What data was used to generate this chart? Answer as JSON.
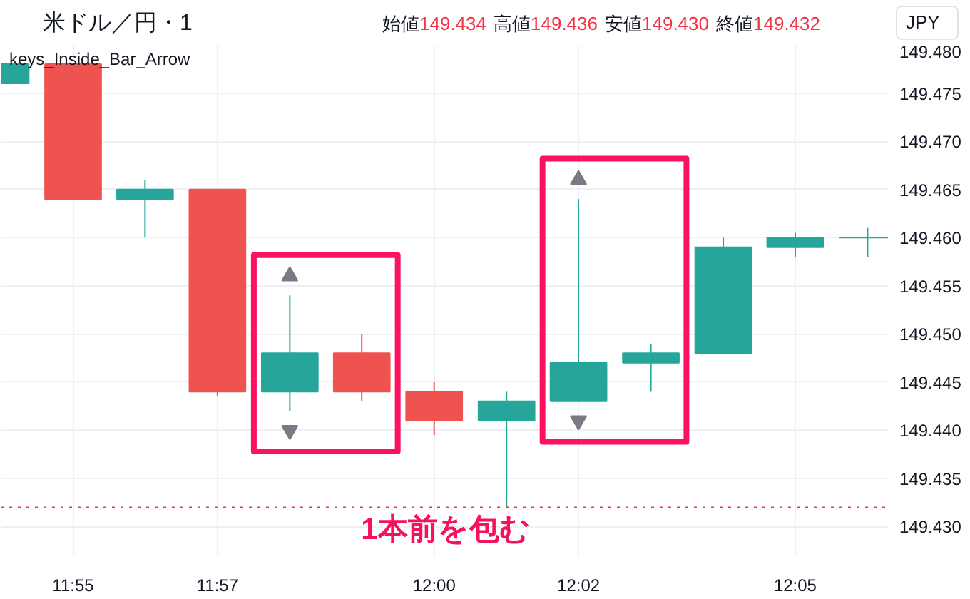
{
  "chart_data": {
    "type": "candlestick",
    "title": "米ドル／円・1",
    "subtitle": "始値149.434 高値149.436 安値149.430 終値149.432",
    "x": [
      11.9,
      11.9167,
      11.9333,
      11.95,
      11.9667,
      11.9833,
      12.0,
      12.0167,
      12.0333,
      12.05,
      12.0667,
      12.0833,
      12.1
    ],
    "ohlc": [
      [
        149.476,
        149.478,
        149.476,
        149.478
      ],
      [
        149.478,
        149.478,
        149.464,
        149.464
      ],
      [
        149.464,
        149.466,
        149.46,
        149.465
      ],
      [
        149.465,
        149.465,
        149.4435,
        149.444
      ],
      [
        149.444,
        149.454,
        149.442,
        149.448
      ],
      [
        149.448,
        149.45,
        149.443,
        149.444
      ],
      [
        149.444,
        149.445,
        149.4395,
        149.441
      ],
      [
        149.441,
        149.444,
        149.432,
        149.443
      ],
      [
        149.443,
        149.464,
        149.443,
        149.447
      ],
      [
        149.447,
        149.449,
        149.444,
        149.448
      ],
      [
        149.448,
        149.46,
        149.448,
        149.459
      ],
      [
        149.459,
        149.4605,
        149.458,
        149.46
      ],
      [
        149.46,
        149.461,
        149.458,
        149.46
      ]
    ],
    "colors": [
      "#26a69a",
      "#ef5350",
      "#26a69a",
      "#ef5350",
      "#26a69a",
      "#ef5350",
      "#ef5350",
      "#26a69a",
      "#26a69a",
      "#26a69a",
      "#26a69a",
      "#26a69a",
      "#26a69a"
    ],
    "series": [
      {
        "type": "scatter",
        "marker": "triangle",
        "color": "#787b86",
        "values": [
          null,
          null,
          null,
          null,
          149.456,
          null,
          null,
          null,
          149.466,
          null,
          null,
          null,
          null
        ]
      },
      {
        "type": "scatter",
        "marker": "triangle_down",
        "color": "#787b86",
        "values": [
          null,
          null,
          null,
          null,
          149.44,
          null,
          null,
          null,
          149.441,
          null,
          null,
          null,
          null
        ]
      }
    ],
    "xlim": [
      11.9,
      12.1047
    ],
    "ylim": [
      149.427,
      149.48
    ],
    "xticks": [
      {
        "value": 11.9167,
        "label": "11:55"
      },
      {
        "value": 11.95,
        "label": "11:57"
      },
      {
        "value": 12.0,
        "label": "12:00"
      },
      {
        "value": 12.0333,
        "label": "12:02"
      },
      {
        "value": 12.0833,
        "label": "12:05"
      }
    ],
    "yticks": [
      {
        "value": 149.43,
        "label": "149.430"
      },
      {
        "value": 149.435,
        "label": "149.435"
      },
      {
        "value": 149.44,
        "label": "149.440"
      },
      {
        "value": 149.445,
        "label": "149.445"
      },
      {
        "value": 149.45,
        "label": "149.450"
      },
      {
        "value": 149.455,
        "label": "149.455"
      },
      {
        "value": 149.46,
        "label": "149.460"
      },
      {
        "value": 149.465,
        "label": "149.465"
      },
      {
        "value": 149.47,
        "label": "149.470"
      },
      {
        "value": 149.475,
        "label": "149.475"
      },
      {
        "value": 149.48,
        "label": "149.480"
      }
    ],
    "grid": true,
    "ref_lines": [
      {
        "axis": "y",
        "value": 149.432,
        "color": "#f23645",
        "line_style": "dotted"
      }
    ],
    "annotations": [
      "keys_Inside_Bar_Arrow",
      "JPY",
      "1本前を包む"
    ]
  }
}
